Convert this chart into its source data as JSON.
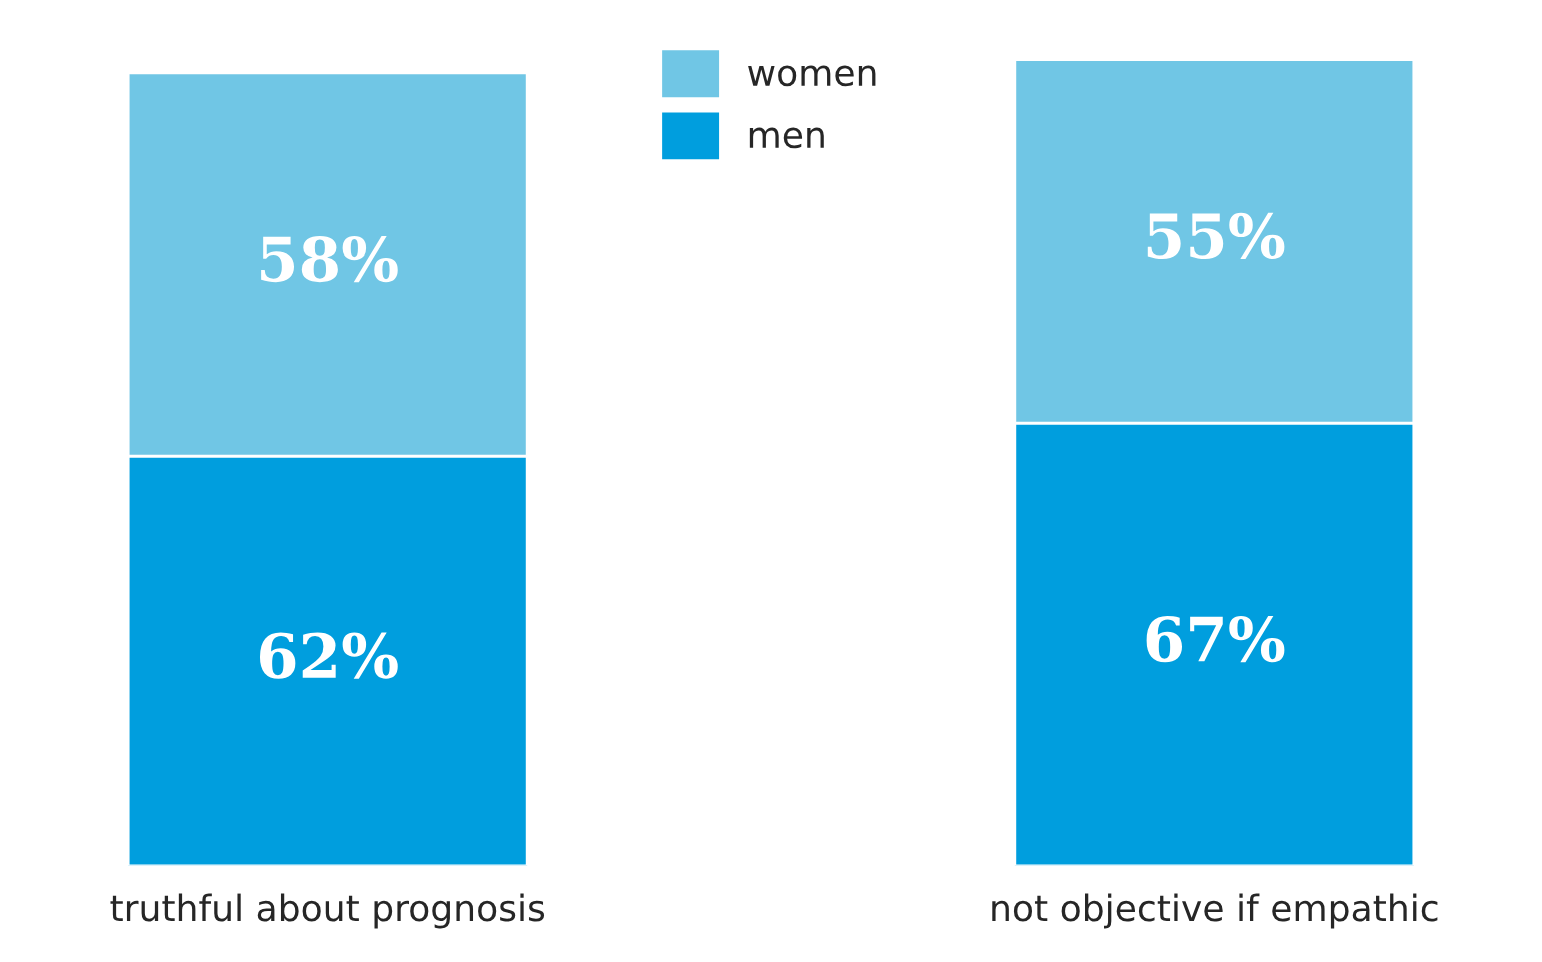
{
  "chart_data": {
    "type": "bar",
    "stacked": true,
    "categories": [
      "truthful about prognosis",
      "not objective if empathic"
    ],
    "series": [
      {
        "name": "men",
        "color": "#009ede",
        "values": [
          62,
          67
        ],
        "value_labels": [
          "62%",
          "67%"
        ]
      },
      {
        "name": "women",
        "color": "#70c6e5",
        "values": [
          58,
          55
        ],
        "value_labels": [
          "58%",
          "55%"
        ]
      }
    ],
    "legend": "top",
    "grid": false
  }
}
